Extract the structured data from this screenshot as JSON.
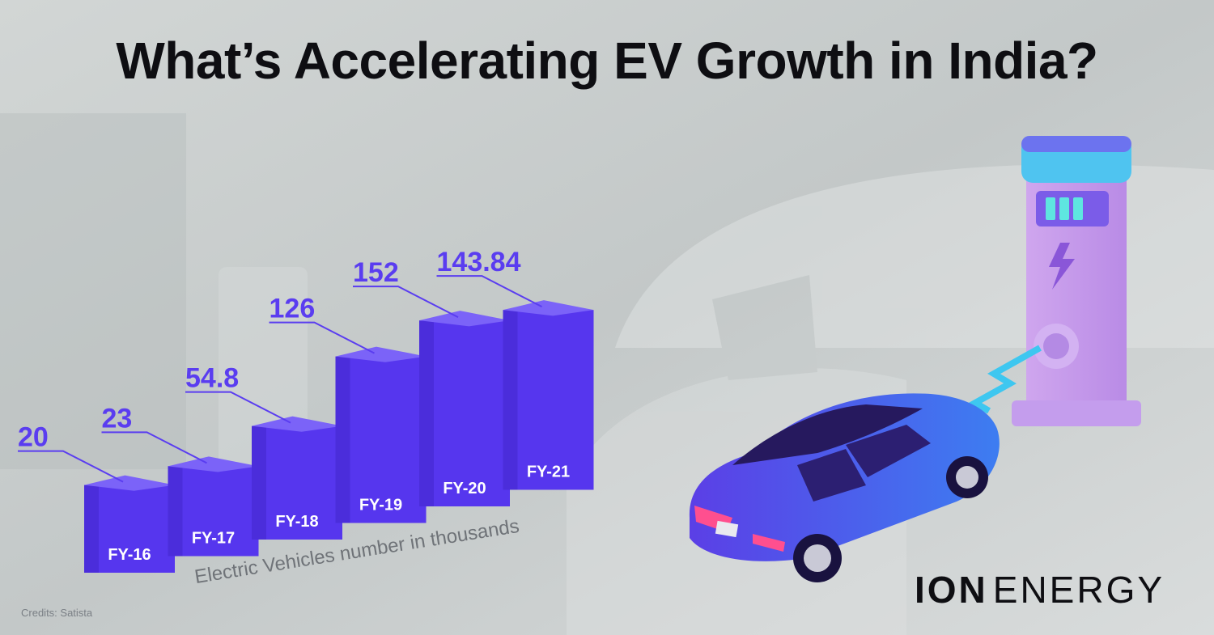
{
  "title": "What’s Accelerating EV Growth in India?",
  "credits": "Credits: Satista",
  "logo": {
    "part1": "ION",
    "part2": "ENERGY"
  },
  "colors": {
    "bar_front": "#5636ee",
    "bar_side": "#4326cc",
    "bar_top": "#7b63f8",
    "value_label": "#5a3df0",
    "tick_label": "#ffffff"
  },
  "chart_data": {
    "type": "bar",
    "title": "What’s Accelerating EV Growth in India?",
    "categories": [
      "FY-16",
      "FY-17",
      "FY-18",
      "FY-19",
      "FY-20",
      "FY-21"
    ],
    "values": [
      20,
      23,
      54.8,
      126,
      152,
      143.84
    ],
    "value_labels": [
      "20",
      "23",
      "54.8",
      "126",
      "152",
      "143.84"
    ],
    "ylabel": "Electric Vehicles number in thousands",
    "xlabel": "",
    "grid": false,
    "legend": "none"
  }
}
